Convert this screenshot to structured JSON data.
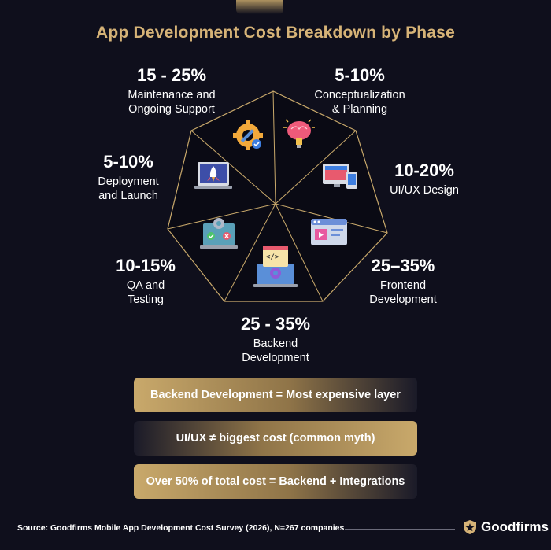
{
  "title": "App Development Cost Breakdown by Phase",
  "phases": [
    {
      "pct": "15 - 25%",
      "name": "Maintenance and\nOngoing Support",
      "icon": "gear-wrench-icon"
    },
    {
      "pct": "5-10%",
      "name": "Conceptualization\n& Planning",
      "icon": "brain-bulb-icon"
    },
    {
      "pct": "10-20%",
      "name": "UI/UX Design",
      "icon": "devices-icon"
    },
    {
      "pct": "25–35%",
      "name": "Frontend\nDevelopment",
      "icon": "browser-window-icon"
    },
    {
      "pct": "25 - 35%",
      "name": "Backend\nDevelopment",
      "icon": "code-laptop-icon"
    },
    {
      "pct": "10-15%",
      "name": "QA and\nTesting",
      "icon": "testing-screen-icon"
    },
    {
      "pct": "5-10%",
      "name": "Deployment\nand Launch",
      "icon": "rocket-laptop-icon"
    }
  ],
  "banners": [
    "Backend Development = Most expensive layer",
    "UI/UX ≠ biggest cost (common myth)",
    "Over 50% of total cost = Backend + Integrations"
  ],
  "source": "Source: Goodfirms Mobile App Development Cost Survey (2026), N=267 companies",
  "brand": "Goodfirms",
  "colors": {
    "background": "#0f0f1c",
    "gold": "#d6b377",
    "heptagon_fill": "#0a0a14",
    "divider": "#c9a96b"
  }
}
